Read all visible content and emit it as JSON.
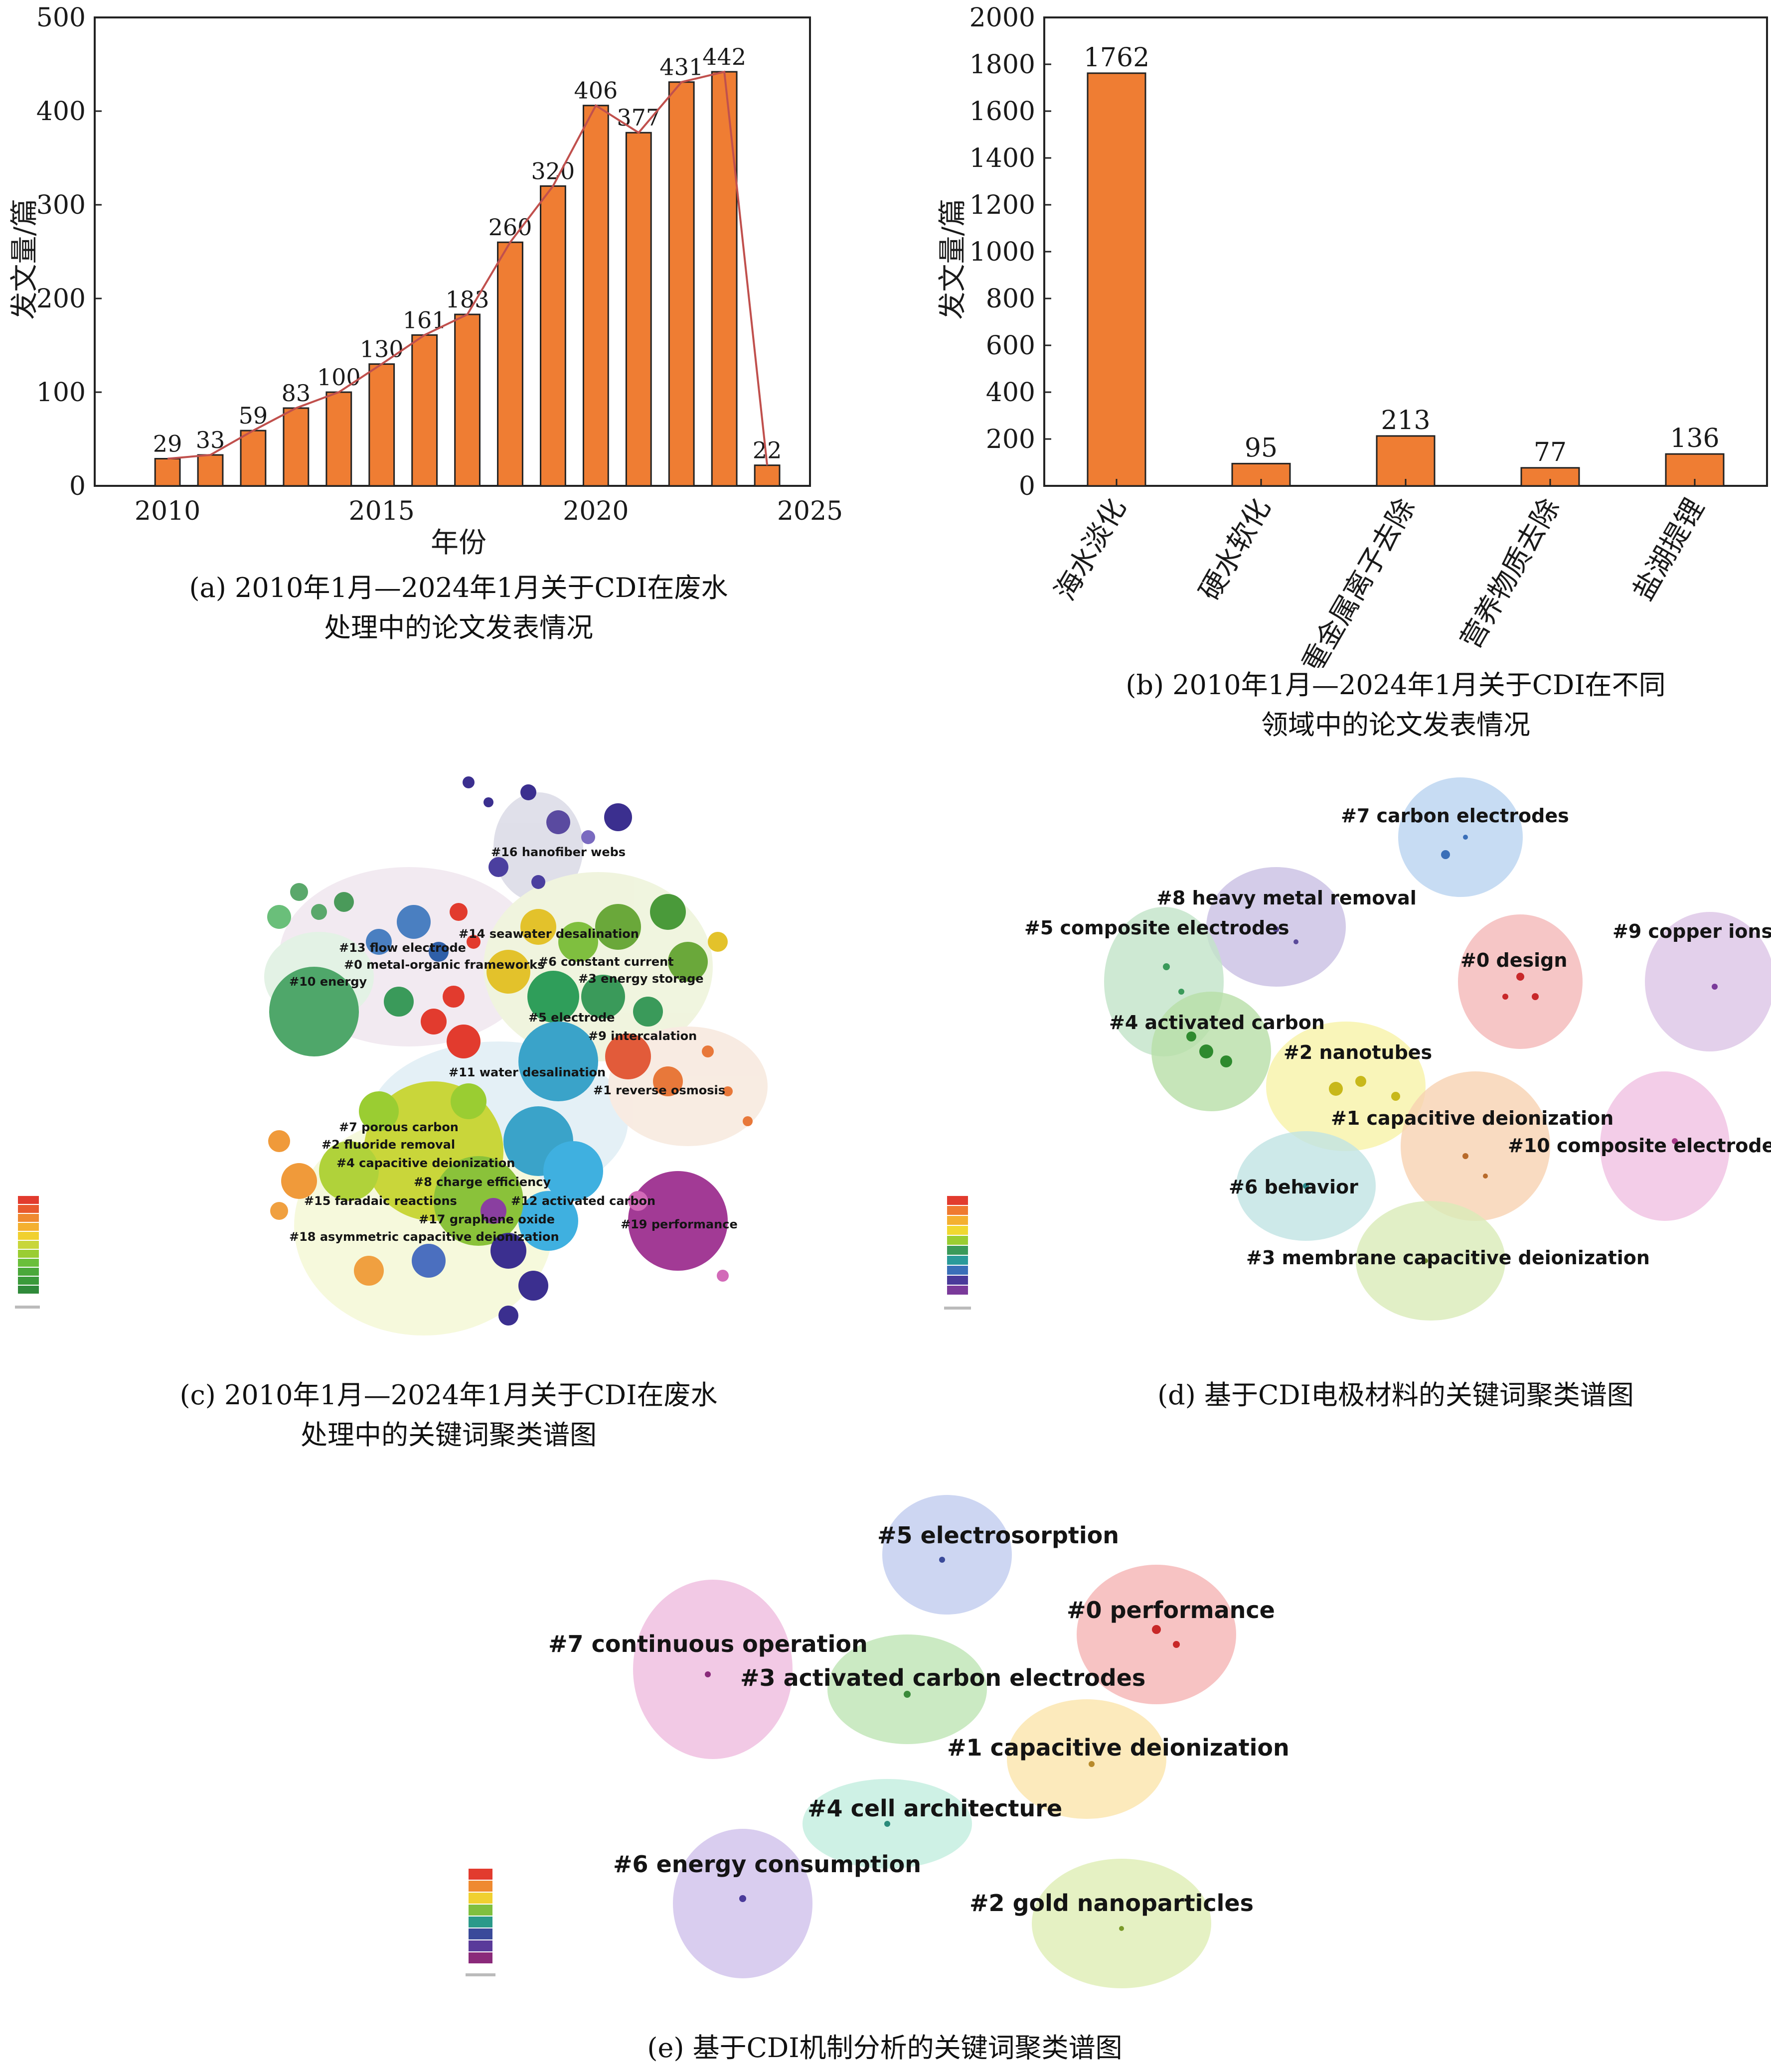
{
  "chart_data": [
    {
      "id": "a",
      "type": "bar",
      "x": [
        2010,
        2011,
        2012,
        2013,
        2014,
        2015,
        2016,
        2017,
        2018,
        2019,
        2020,
        2021,
        2022,
        2023,
        2024
      ],
      "values": [
        29,
        33,
        59,
        83,
        100,
        130,
        161,
        183,
        260,
        320,
        406,
        377,
        431,
        442,
        22
      ],
      "trend_line": true,
      "xlabel": "年份",
      "ylabel": "发文量/篇",
      "xlim": [
        2008.3,
        2025
      ],
      "ylim": [
        0,
        500
      ],
      "xticks": [
        2010,
        2015,
        2020,
        2025
      ],
      "yticks": [
        0,
        100,
        200,
        300,
        400,
        500
      ],
      "bar_color": "#ef7d33",
      "line_color": "#c0504d",
      "caption": [
        "(a) 2010年1月—2024年1月关于CDI在废水",
        "处理中的论文发表情况"
      ]
    },
    {
      "id": "b",
      "type": "bar",
      "categories": [
        "海水淡化",
        "硬水软化",
        "重金属离子去除",
        "营养物质去除",
        "盐湖提锂"
      ],
      "values": [
        1762,
        95,
        213,
        77,
        136
      ],
      "ylabel": "发文量/篇",
      "ylim": [
        0,
        2000
      ],
      "yticks": [
        0,
        200,
        400,
        600,
        800,
        1000,
        1200,
        1400,
        1600,
        1800,
        2000
      ],
      "bar_color": "#ef7d33",
      "caption": [
        "(b) 2010年1月—2024年1月关于CDI在不同",
        "领域中的论文发表情况"
      ]
    },
    {
      "id": "c",
      "type": "other",
      "subtype": "keyword-cluster-map",
      "clusters": [
        {
          "label": "#16 hanofiber webs",
          "color": "#3b2f8f"
        },
        {
          "label": "#13 flow electrode",
          "color": "#4a7fc1"
        },
        {
          "label": "#14 seawater desalination",
          "color": "#c6c6d8"
        },
        {
          "label": "#0 metal-organic frameworks",
          "color": "#e23b2e"
        },
        {
          "label": "#6 constant current",
          "color": "#e3c22b"
        },
        {
          "label": "#10 energy",
          "color": "#5aa86b"
        },
        {
          "label": "#3 energy storage",
          "color": "#7fbf3f"
        },
        {
          "label": "#5 electrode",
          "color": "#2f9e5a"
        },
        {
          "label": "#9 intercalation",
          "color": "#e25b3a"
        },
        {
          "label": "#11 water desalination",
          "color": "#3aa3c9"
        },
        {
          "label": "#1 reverse osmosis",
          "color": "#e8783a"
        },
        {
          "label": "#7 porous carbon",
          "color": "#9acd32"
        },
        {
          "label": "#2 fluoride removal",
          "color": "#f09a3a"
        },
        {
          "label": "#4 capacitive deionization",
          "color": "#c9d63a"
        },
        {
          "label": "#8 charge efficiency",
          "color": "#4b6fbf"
        },
        {
          "label": "#15 faradaic reactions",
          "color": "#f0a040"
        },
        {
          "label": "#12 activated carbon",
          "color": "#3fb0e0"
        },
        {
          "label": "#17 graphene oxide",
          "color": "#8a3fa0"
        },
        {
          "label": "#18 asymmetric capacitive deionization",
          "color": "#d26ab8"
        },
        {
          "label": "#19 performance",
          "color": "#a23a95"
        }
      ],
      "caption": [
        "(c) 2010年1月—2024年1月关于CDI在废水",
        "处理中的关键词聚类谱图"
      ]
    },
    {
      "id": "d",
      "type": "other",
      "subtype": "keyword-cluster-map",
      "clusters": [
        {
          "label": "#7 carbon electrodes",
          "color": "#b9d3f0",
          "dot": "#3a6fb8"
        },
        {
          "label": "#8 heavy metal removal",
          "color": "#c9bfe3",
          "dot": "#5a4a9a"
        },
        {
          "label": "#5 composite electrodes",
          "color": "#c2e3c8",
          "dot": "#3a9a5a"
        },
        {
          "label": "#0 design",
          "color": "#f4b8b8",
          "dot": "#c8282a"
        },
        {
          "label": "#9 copper ions",
          "color": "#dcc4e6",
          "dot": "#7a3a9a"
        },
        {
          "label": "#4 activated carbon",
          "color": "#b8dfa8",
          "dot": "#2e8a2e"
        },
        {
          "label": "#2 nanotubes",
          "color": "#f7f2a8",
          "dot": "#c8b81a"
        },
        {
          "label": "#1 capacitive deionization",
          "color": "#f8d2b2",
          "dot": "#b86a2a"
        },
        {
          "label": "#10 composite electrode",
          "color": "#f0c0e2",
          "dot": "#a83a8a"
        },
        {
          "label": "#6 behavior",
          "color": "#c0e4e4",
          "dot": "#2a8a8a"
        },
        {
          "label": "#3 membrane capacitive deionization",
          "color": "#d9ebb8",
          "dot": "#6a8a2a"
        }
      ],
      "caption": [
        "(d) 基于CDI电极材料的关键词聚类谱图"
      ]
    },
    {
      "id": "e",
      "type": "other",
      "subtype": "keyword-cluster-map",
      "clusters": [
        {
          "label": "#5 electrosorption",
          "color": "#c4cff0",
          "dot": "#3a4a9a"
        },
        {
          "label": "#0 performance",
          "color": "#f6b8b8",
          "dot": "#c82828"
        },
        {
          "label": "#7 continuous operation",
          "color": "#f0c0e0",
          "dot": "#8a2a7a"
        },
        {
          "label": "#3 activated carbon electrodes",
          "color": "#c2e6b8",
          "dot": "#3a8a3a"
        },
        {
          "label": "#1 capacitive deionization",
          "color": "#fbe6b0",
          "dot": "#b88a2a"
        },
        {
          "label": "#4 cell architecture",
          "color": "#c6eee0",
          "dot": "#2a8a7a"
        },
        {
          "label": "#6 energy consumption",
          "color": "#d2c4ec",
          "dot": "#4a3a9a"
        },
        {
          "label": "#2 gold nanoparticles",
          "color": "#e0efb8",
          "dot": "#7a9a2a"
        }
      ],
      "caption": [
        "(e) 基于CDI机制分析的关键词聚类谱图"
      ]
    }
  ]
}
